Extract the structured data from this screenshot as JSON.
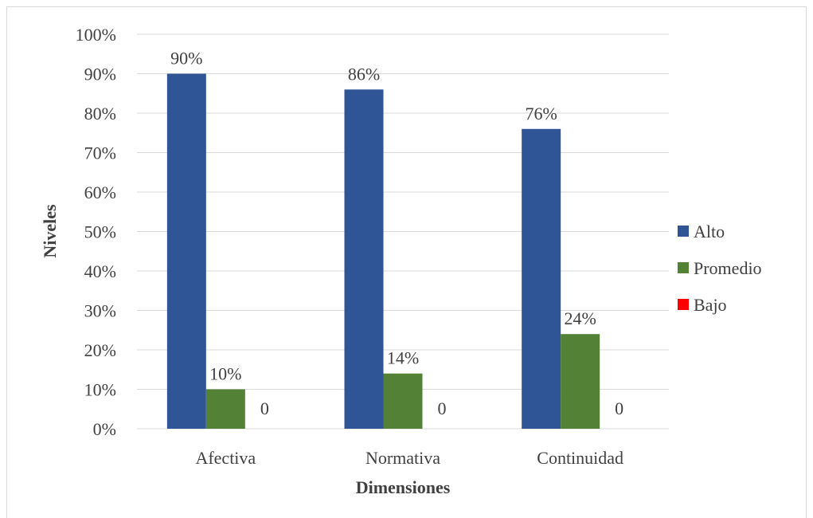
{
  "chart_data": {
    "type": "bar",
    "title": "",
    "xlabel": "Dimensiones",
    "ylabel": "Niveles",
    "ylim": [
      0,
      100
    ],
    "y_ticks": [
      "0%",
      "10%",
      "20%",
      "30%",
      "40%",
      "50%",
      "60%",
      "70%",
      "80%",
      "90%",
      "100%"
    ],
    "categories": [
      "Afectiva",
      "Normativa",
      "Continuidad"
    ],
    "series": [
      {
        "name": "Alto",
        "color": "#2f5597",
        "values": [
          90,
          86,
          76
        ],
        "labels": [
          "90%",
          "86%",
          "76%"
        ]
      },
      {
        "name": "Promedio",
        "color": "#538135",
        "values": [
          10,
          14,
          24
        ],
        "labels": [
          "10%",
          "14%",
          "24%"
        ]
      },
      {
        "name": "Bajo",
        "color": "#ff0000",
        "values": [
          0,
          0,
          0
        ],
        "labels": [
          "0",
          "0",
          "0"
        ]
      }
    ],
    "grid": true,
    "legend_position": "right"
  }
}
